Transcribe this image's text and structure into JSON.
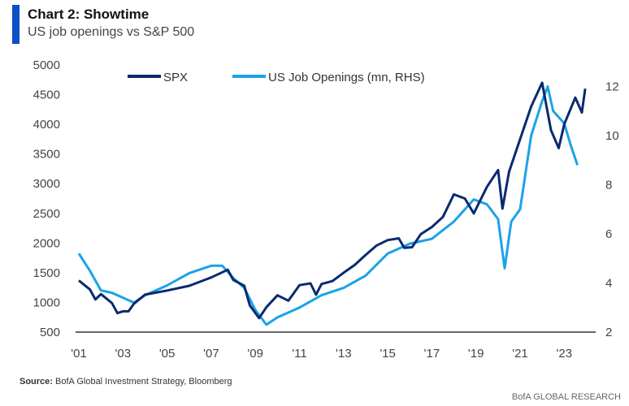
{
  "title": "Chart 2: Showtime",
  "subtitle": "US job openings vs S&P 500",
  "source_label": "Source:",
  "source_text": "BofA Global Investment Strategy, Bloomberg",
  "brand": "BofA GLOBAL RESEARCH",
  "chart_data": {
    "type": "line",
    "xlim": [
      2001,
      2024.4
    ],
    "x_ticks": [
      "'01",
      "'03",
      "'05",
      "'07",
      "'09",
      "'11",
      "'13",
      "'15",
      "'17",
      "'19",
      "'21",
      "'23"
    ],
    "x_tick_years": [
      2001,
      2003,
      2005,
      2007,
      2009,
      2011,
      2013,
      2015,
      2017,
      2019,
      2021,
      2023
    ],
    "ylim_left": [
      500,
      5000
    ],
    "y_ticks_left": [
      500,
      1000,
      1500,
      2000,
      2500,
      3000,
      3500,
      4000,
      4500,
      5000
    ],
    "ylim_right": [
      2,
      12.2
    ],
    "y_ticks_right": [
      2,
      4,
      6,
      8,
      10,
      12
    ],
    "legend_placement": "top",
    "grid": false,
    "series": [
      {
        "name": "SPX",
        "axis": "left",
        "color": "#0a2a6e",
        "x": [
          2001,
          2001.5,
          2001.75,
          2002,
          2002.5,
          2002.75,
          2003,
          2003.25,
          2003.5,
          2004,
          2005,
          2006,
          2007,
          2007.75,
          2008,
          2008.5,
          2008.75,
          2009.17,
          2009.5,
          2010,
          2010.5,
          2011,
          2011.5,
          2011.75,
          2012,
          2012.5,
          2013,
          2013.5,
          2014,
          2014.5,
          2015,
          2015.5,
          2015.75,
          2016.1,
          2016.5,
          2017,
          2017.5,
          2018,
          2018.5,
          2018.9,
          2019.5,
          2020,
          2020.2,
          2020.5,
          2021,
          2021.5,
          2022,
          2022.4,
          2022.75,
          2023,
          2023.5,
          2023.8,
          2023.95
        ],
        "values": [
          1370,
          1220,
          1050,
          1140,
          990,
          820,
          850,
          850,
          980,
          1130,
          1200,
          1280,
          1420,
          1550,
          1380,
          1280,
          950,
          735,
          920,
          1120,
          1030,
          1290,
          1320,
          1130,
          1310,
          1360,
          1500,
          1630,
          1800,
          1960,
          2050,
          2080,
          1920,
          1930,
          2150,
          2270,
          2440,
          2820,
          2750,
          2500,
          2950,
          3230,
          2580,
          3200,
          3750,
          4300,
          4700,
          3900,
          3600,
          4000,
          4450,
          4200,
          4600
        ]
      },
      {
        "name": "US Job Openings (mn, RHS)",
        "axis": "right",
        "color": "#1aa3e8",
        "x": [
          2001,
          2001.5,
          2002,
          2002.5,
          2003,
          2003.5,
          2004,
          2005,
          2006,
          2007,
          2007.5,
          2008,
          2008.5,
          2009,
          2009.5,
          2010,
          2011,
          2012,
          2013,
          2014,
          2015,
          2016,
          2017,
          2018,
          2018.9,
          2019.5,
          2020,
          2020.3,
          2020.6,
          2021,
          2021.5,
          2022,
          2022.25,
          2022.5,
          2023,
          2023.3,
          2023.6
        ],
        "values": [
          5.2,
          4.5,
          3.7,
          3.6,
          3.4,
          3.2,
          3.5,
          3.9,
          4.4,
          4.7,
          4.7,
          4.2,
          3.8,
          2.9,
          2.3,
          2.6,
          3.0,
          3.5,
          3.8,
          4.3,
          5.2,
          5.6,
          5.8,
          6.5,
          7.4,
          7.2,
          6.6,
          4.6,
          6.5,
          7.0,
          10.0,
          11.4,
          12.0,
          11.0,
          10.5,
          9.6,
          8.8
        ]
      }
    ]
  }
}
